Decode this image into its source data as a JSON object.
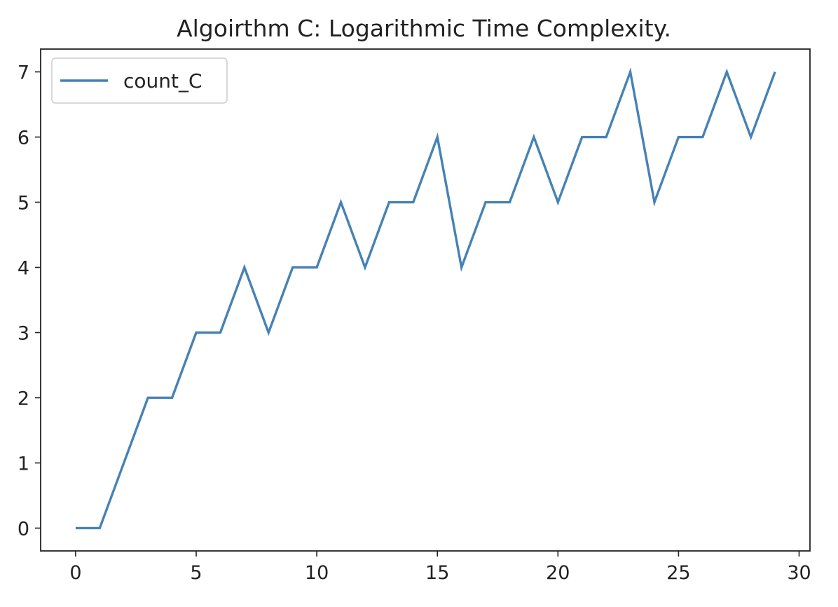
{
  "chart_data": {
    "type": "line",
    "title": "Algoirthm C: Logarithmic Time Complexity.",
    "xlabel": "",
    "ylabel": "",
    "xlim": [
      -1.45,
      30.45
    ],
    "ylim": [
      -0.35,
      7.35
    ],
    "xticks": [
      0,
      5,
      10,
      15,
      20,
      25,
      30
    ],
    "yticks": [
      0,
      1,
      2,
      3,
      4,
      5,
      6,
      7
    ],
    "grid": false,
    "legend_position": "upper left",
    "series": [
      {
        "name": "count_C",
        "color": "#4682b4",
        "x": [
          0,
          1,
          2,
          3,
          4,
          5,
          6,
          7,
          8,
          9,
          10,
          11,
          12,
          13,
          14,
          15,
          16,
          17,
          18,
          19,
          20,
          21,
          22,
          23,
          24,
          25,
          26,
          27,
          28,
          29
        ],
        "y": [
          0,
          0,
          1,
          2,
          2,
          3,
          3,
          4,
          3,
          4,
          4,
          5,
          4,
          5,
          5,
          6,
          4,
          5,
          5,
          6,
          5,
          6,
          6,
          7,
          5,
          6,
          6,
          7,
          6,
          7
        ]
      }
    ]
  }
}
